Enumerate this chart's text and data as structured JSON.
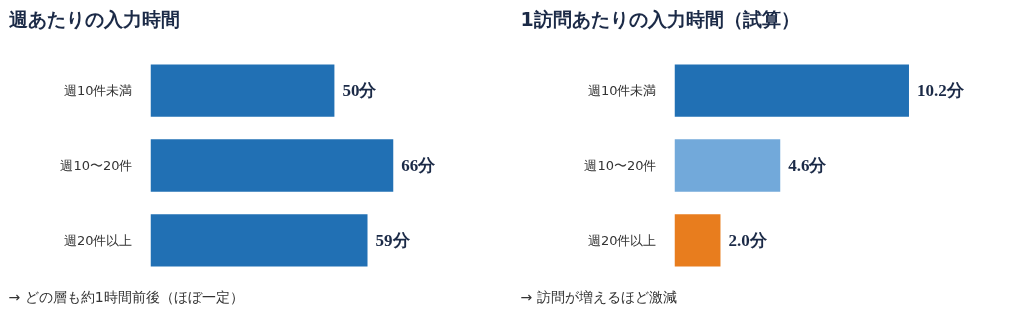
{
  "chart_data": [
    {
      "type": "bar",
      "orientation": "horizontal",
      "title": "週あたりの入力時間",
      "categories": [
        "週10件未満",
        "週10〜20件",
        "週20件以上"
      ],
      "series": [
        {
          "colors": [
            "#2170b4",
            "#2170b4",
            "#2170b4"
          ],
          "values": [
            50,
            66,
            59
          ],
          "value_labels": [
            "50分",
            "66分",
            "59分"
          ]
        }
      ],
      "tick_labels": "y",
      "grid": false,
      "annotations": [
        "→ どの層も約1時間前後（ほぼ一定）"
      ]
    },
    {
      "type": "bar",
      "orientation": "horizontal",
      "title": "1訪問あたりの入力時間（試算）",
      "categories": [
        "週10件未満",
        "週10〜20件",
        "週20件以上"
      ],
      "series": [
        {
          "colors": [
            "#2170b4",
            "#72a9da",
            "#e87d1e"
          ],
          "values": [
            10.2,
            4.6,
            2.0
          ],
          "value_labels": [
            "10.2分",
            "4.6分",
            "2.0分"
          ]
        }
      ],
      "tick_labels": "y",
      "grid": false,
      "annotations": [
        "→ 訪問が増えるほど激減"
      ]
    }
  ]
}
